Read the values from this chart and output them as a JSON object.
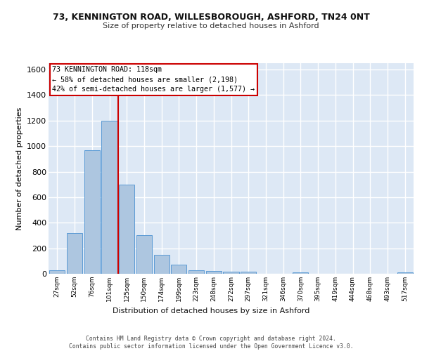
{
  "title1": "73, KENNINGTON ROAD, WILLESBOROUGH, ASHFORD, TN24 0NT",
  "title2": "Size of property relative to detached houses in Ashford",
  "xlabel": "Distribution of detached houses by size in Ashford",
  "ylabel": "Number of detached properties",
  "bar_color": "#adc6e0",
  "bar_edge_color": "#5b9bd5",
  "background_color": "#dde8f5",
  "grid_color": "#ffffff",
  "bin_labels": [
    "27sqm",
    "52sqm",
    "76sqm",
    "101sqm",
    "125sqm",
    "150sqm",
    "174sqm",
    "199sqm",
    "223sqm",
    "248sqm",
    "272sqm",
    "297sqm",
    "321sqm",
    "346sqm",
    "370sqm",
    "395sqm",
    "419sqm",
    "444sqm",
    "468sqm",
    "493sqm",
    "517sqm"
  ],
  "bar_heights": [
    30,
    320,
    970,
    1200,
    700,
    300,
    150,
    70,
    30,
    20,
    15,
    15,
    0,
    0,
    10,
    0,
    0,
    0,
    0,
    0,
    10
  ],
  "ylim": [
    0,
    1650
  ],
  "yticks": [
    0,
    200,
    400,
    600,
    800,
    1000,
    1200,
    1400,
    1600
  ],
  "property_label": "73 KENNINGTON ROAD: 118sqm",
  "annotation_line1": "← 58% of detached houses are smaller (2,198)",
  "annotation_line2": "42% of semi-detached houses are larger (1,577) →",
  "vline_color": "#cc0000",
  "annotation_box_color": "#ffffff",
  "annotation_border_color": "#cc0000",
  "footer1": "Contains HM Land Registry data © Crown copyright and database right 2024.",
  "footer2": "Contains public sector information licensed under the Open Government Licence v3.0.",
  "n_bins": 21
}
